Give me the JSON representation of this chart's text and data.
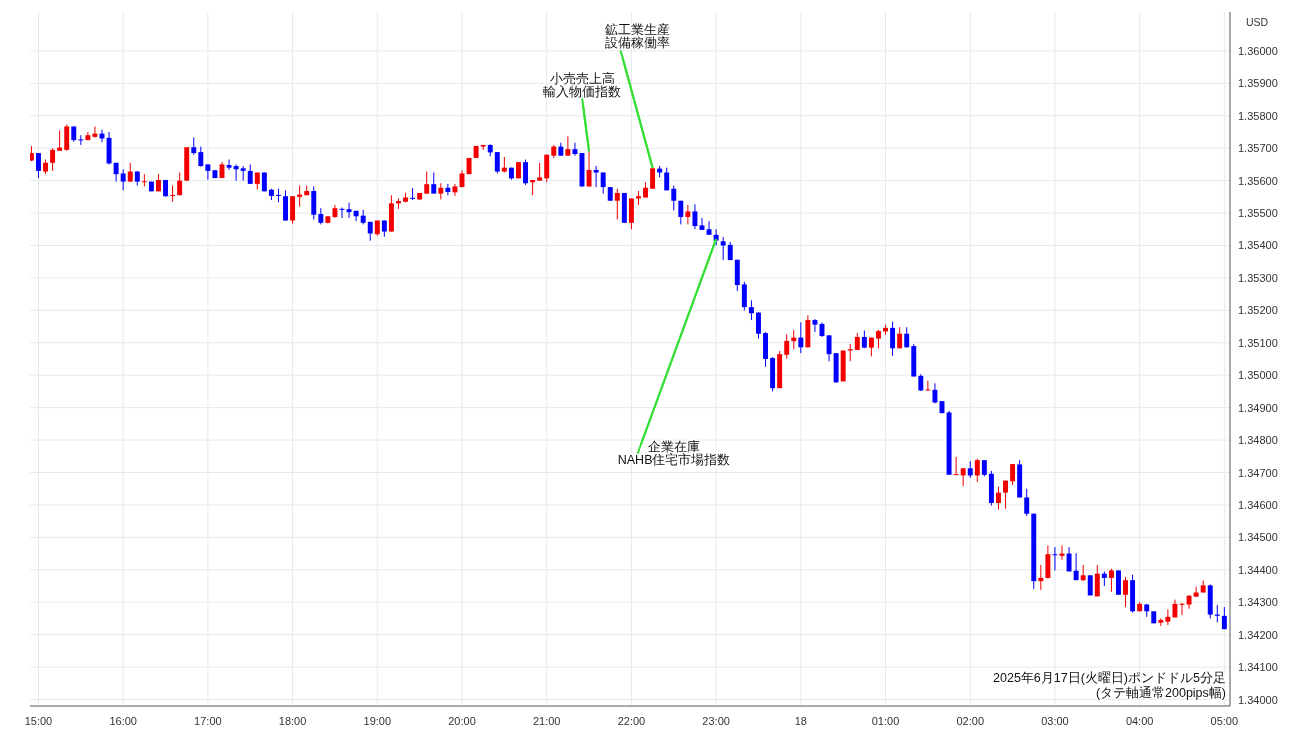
{
  "chart_data": {
    "type": "candlestick",
    "ylabel": "USD",
    "grid": true,
    "xlim": [
      "2025-06-17T14:54",
      "2025-06-18T05:04"
    ],
    "ylim": [
      1.3398,
      1.3612
    ],
    "xticks": [
      {
        "value": "2025-06-17T15:00",
        "label": "15:00"
      },
      {
        "value": "2025-06-17T16:00",
        "label": "16:00"
      },
      {
        "value": "2025-06-17T17:00",
        "label": "17:00"
      },
      {
        "value": "2025-06-17T18:00",
        "label": "18:00"
      },
      {
        "value": "2025-06-17T19:00",
        "label": "19:00"
      },
      {
        "value": "2025-06-17T20:00",
        "label": "20:00"
      },
      {
        "value": "2025-06-17T21:00",
        "label": "21:00"
      },
      {
        "value": "2025-06-17T22:00",
        "label": "22:00"
      },
      {
        "value": "2025-06-17T23:00",
        "label": "23:00"
      },
      {
        "value": "2025-06-18T00:00",
        "label": "18"
      },
      {
        "value": "2025-06-18T01:00",
        "label": "01:00"
      },
      {
        "value": "2025-06-18T02:00",
        "label": "02:00"
      },
      {
        "value": "2025-06-18T03:00",
        "label": "03:00"
      },
      {
        "value": "2025-06-18T04:00",
        "label": "04:00"
      },
      {
        "value": "2025-06-18T05:00",
        "label": "05:00"
      }
    ],
    "yticks": [
      {
        "value": 1.34,
        "label": "1.34000"
      },
      {
        "value": 1.341,
        "label": "1.34100"
      },
      {
        "value": 1.342,
        "label": "1.34200"
      },
      {
        "value": 1.343,
        "label": "1.34300"
      },
      {
        "value": 1.344,
        "label": "1.34400"
      },
      {
        "value": 1.345,
        "label": "1.34500"
      },
      {
        "value": 1.346,
        "label": "1.34600"
      },
      {
        "value": 1.347,
        "label": "1.34700"
      },
      {
        "value": 1.348,
        "label": "1.34800"
      },
      {
        "value": 1.349,
        "label": "1.34900"
      },
      {
        "value": 1.35,
        "label": "1.35000"
      },
      {
        "value": 1.351,
        "label": "1.35100"
      },
      {
        "value": 1.352,
        "label": "1.35200"
      },
      {
        "value": 1.353,
        "label": "1.35300"
      },
      {
        "value": 1.354,
        "label": "1.35400"
      },
      {
        "value": 1.355,
        "label": "1.35500"
      },
      {
        "value": 1.356,
        "label": "1.35600"
      },
      {
        "value": 1.357,
        "label": "1.35700"
      },
      {
        "value": 1.358,
        "label": "1.35800"
      },
      {
        "value": 1.359,
        "label": "1.35900"
      },
      {
        "value": 1.36,
        "label": "1.36000"
      }
    ],
    "annotations": [
      {
        "text": "小売売上高",
        "x": "2025-06-17T21:30",
        "y": 1.3569
      },
      {
        "text": "輸入物価指数",
        "x": "2025-06-17T21:30",
        "y": 1.3569
      },
      {
        "text": "鉱工業生産",
        "x": "2025-06-17T22:15",
        "y": 1.3564
      },
      {
        "text": "設備稼働率",
        "x": "2025-06-17T22:15",
        "y": 1.3564
      },
      {
        "text": "企業在庫",
        "x": "2025-06-17T23:00",
        "y": 1.3542
      },
      {
        "text": "NAHB住宅市場指数",
        "x": "2025-06-17T23:00",
        "y": 1.3542
      },
      "2025年6月17日(火曜日)ポンドドル5分足",
      "(タテ軸通常200pips幅)"
    ],
    "x": [
      "2025-06-17T14:55",
      "2025-06-17T15:00",
      "2025-06-17T15:05",
      "2025-06-17T15:10",
      "2025-06-17T15:15",
      "2025-06-17T15:20",
      "2025-06-17T15:25",
      "2025-06-17T15:30",
      "2025-06-17T15:35",
      "2025-06-17T15:40",
      "2025-06-17T15:45",
      "2025-06-17T15:50",
      "2025-06-17T15:55",
      "2025-06-17T16:00",
      "2025-06-17T16:05",
      "2025-06-17T16:10",
      "2025-06-17T16:15",
      "2025-06-17T16:20",
      "2025-06-17T16:25",
      "2025-06-17T16:30",
      "2025-06-17T16:35",
      "2025-06-17T16:40",
      "2025-06-17T16:45",
      "2025-06-17T16:50",
      "2025-06-17T16:55",
      "2025-06-17T17:00",
      "2025-06-17T17:05",
      "2025-06-17T17:10",
      "2025-06-17T17:15",
      "2025-06-17T17:20",
      "2025-06-17T17:25",
      "2025-06-17T17:30",
      "2025-06-17T17:35",
      "2025-06-17T17:40",
      "2025-06-17T17:45",
      "2025-06-17T17:50",
      "2025-06-17T17:55",
      "2025-06-17T18:00",
      "2025-06-17T18:05",
      "2025-06-17T18:10",
      "2025-06-17T18:15",
      "2025-06-17T18:20",
      "2025-06-17T18:25",
      "2025-06-17T18:30",
      "2025-06-17T18:35",
      "2025-06-17T18:40",
      "2025-06-17T18:45",
      "2025-06-17T18:50",
      "2025-06-17T18:55",
      "2025-06-17T19:00",
      "2025-06-17T19:05",
      "2025-06-17T19:10",
      "2025-06-17T19:15",
      "2025-06-17T19:20",
      "2025-06-17T19:25",
      "2025-06-17T19:30",
      "2025-06-17T19:35",
      "2025-06-17T19:40",
      "2025-06-17T19:45",
      "2025-06-17T19:50",
      "2025-06-17T19:55",
      "2025-06-17T20:00",
      "2025-06-17T20:05",
      "2025-06-17T20:10",
      "2025-06-17T20:15",
      "2025-06-17T20:20",
      "2025-06-17T20:25",
      "2025-06-17T20:30",
      "2025-06-17T20:35",
      "2025-06-17T20:40",
      "2025-06-17T20:45",
      "2025-06-17T20:50",
      "2025-06-17T20:55",
      "2025-06-17T21:00",
      "2025-06-17T21:05",
      "2025-06-17T21:10",
      "2025-06-17T21:15",
      "2025-06-17T21:20",
      "2025-06-17T21:25",
      "2025-06-17T21:30",
      "2025-06-17T21:35",
      "2025-06-17T21:40",
      "2025-06-17T21:45",
      "2025-06-17T21:50",
      "2025-06-17T21:55",
      "2025-06-17T22:00",
      "2025-06-17T22:05",
      "2025-06-17T22:10",
      "2025-06-17T22:15",
      "2025-06-17T22:20",
      "2025-06-17T22:25",
      "2025-06-17T22:30",
      "2025-06-17T22:35",
      "2025-06-17T22:40",
      "2025-06-17T22:45",
      "2025-06-17T22:50",
      "2025-06-17T22:55",
      "2025-06-17T23:00",
      "2025-06-17T23:05",
      "2025-06-17T23:10",
      "2025-06-17T23:15",
      "2025-06-17T23:20",
      "2025-06-17T23:25",
      "2025-06-17T23:30",
      "2025-06-17T23:35",
      "2025-06-17T23:40",
      "2025-06-17T23:45",
      "2025-06-17T23:50",
      "2025-06-17T23:55",
      "2025-06-18T00:00",
      "2025-06-18T00:05",
      "2025-06-18T00:10",
      "2025-06-18T00:15",
      "2025-06-18T00:20",
      "2025-06-18T00:25",
      "2025-06-18T00:30",
      "2025-06-18T00:35",
      "2025-06-18T00:40",
      "2025-06-18T00:45",
      "2025-06-18T00:50",
      "2025-06-18T00:55",
      "2025-06-18T01:00",
      "2025-06-18T01:05",
      "2025-06-18T01:10",
      "2025-06-18T01:15",
      "2025-06-18T01:20",
      "2025-06-18T01:25",
      "2025-06-18T01:30",
      "2025-06-18T01:35",
      "2025-06-18T01:40",
      "2025-06-18T01:45",
      "2025-06-18T01:50",
      "2025-06-18T01:55",
      "2025-06-18T02:00",
      "2025-06-18T02:05",
      "2025-06-18T02:10",
      "2025-06-18T02:15",
      "2025-06-18T02:20",
      "2025-06-18T02:25",
      "2025-06-18T02:30",
      "2025-06-18T02:35",
      "2025-06-18T02:40",
      "2025-06-18T02:45",
      "2025-06-18T02:50",
      "2025-06-18T02:55",
      "2025-06-18T03:00",
      "2025-06-18T03:05",
      "2025-06-18T03:10",
      "2025-06-18T03:15",
      "2025-06-18T03:20",
      "2025-06-18T03:25",
      "2025-06-18T03:30",
      "2025-06-18T03:35",
      "2025-06-18T03:40",
      "2025-06-18T03:45",
      "2025-06-18T03:50",
      "2025-06-18T03:55",
      "2025-06-18T04:00",
      "2025-06-18T04:05",
      "2025-06-18T04:10",
      "2025-06-18T04:15",
      "2025-06-18T04:20",
      "2025-06-18T04:25",
      "2025-06-18T04:30",
      "2025-06-18T04:35",
      "2025-06-18T04:40",
      "2025-06-18T04:45",
      "2025-06-18T04:50",
      "2025-06-18T04:55",
      "2025-06-18T05:00"
    ],
    "ohlc": [
      [
        1.35662,
        1.35707,
        1.3566,
        1.35685
      ],
      [
        1.35685,
        1.35685,
        1.35608,
        1.3563
      ],
      [
        1.35628,
        1.35665,
        1.3562,
        1.35655
      ],
      [
        1.35655,
        1.357,
        1.3563,
        1.35695
      ],
      [
        1.35692,
        1.35755,
        1.35692,
        1.35702
      ],
      [
        1.35695,
        1.35773,
        1.35692,
        1.35767
      ],
      [
        1.35767,
        1.35767,
        1.3572,
        1.35725
      ],
      [
        1.35727,
        1.3574,
        1.3571,
        1.35724
      ],
      [
        1.35725,
        1.3575,
        1.35725,
        1.3574
      ],
      [
        1.35735,
        1.35767,
        1.35733,
        1.35745
      ],
      [
        1.35745,
        1.35757,
        1.35718,
        1.3573
      ],
      [
        1.35732,
        1.3575,
        1.3565,
        1.35653
      ],
      [
        1.35655,
        1.35655,
        1.35597,
        1.3562
      ],
      [
        1.35622,
        1.35635,
        1.3557,
        1.35597
      ],
      [
        1.35597,
        1.35655,
        1.35597,
        1.35628
      ],
      [
        1.35628,
        1.3563,
        1.35585,
        1.35597
      ],
      [
        1.35595,
        1.3562,
        1.35582,
        1.35598
      ],
      [
        1.35597,
        1.35597,
        1.35567,
        1.35567
      ],
      [
        1.35567,
        1.3562,
        1.35567,
        1.35602
      ],
      [
        1.35602,
        1.35602,
        1.3555,
        1.35552
      ],
      [
        1.35553,
        1.35585,
        1.35535,
        1.35556
      ],
      [
        1.35555,
        1.35625,
        1.35555,
        1.356
      ],
      [
        1.356,
        1.35703,
        1.356,
        1.35703
      ],
      [
        1.35703,
        1.35733,
        1.3568,
        1.35685
      ],
      [
        1.35688,
        1.35705,
        1.35643,
        1.35645
      ],
      [
        1.3565,
        1.3565,
        1.35603,
        1.3563
      ],
      [
        1.35632,
        1.35632,
        1.35608,
        1.35608
      ],
      [
        1.35608,
        1.35657,
        1.35608,
        1.3565
      ],
      [
        1.35648,
        1.35665,
        1.35633,
        1.3564
      ],
      [
        1.35645,
        1.3565,
        1.356,
        1.35635
      ],
      [
        1.35638,
        1.35645,
        1.356,
        1.3563
      ],
      [
        1.3563,
        1.3565,
        1.3559,
        1.3559
      ],
      [
        1.3559,
        1.35625,
        1.35573,
        1.35625
      ],
      [
        1.35625,
        1.35625,
        1.35567,
        1.35567
      ],
      [
        1.35572,
        1.35575,
        1.3554,
        1.35553
      ],
      [
        1.35556,
        1.35575,
        1.35533,
        1.35554
      ],
      [
        1.35552,
        1.3557,
        1.35477,
        1.35477
      ],
      [
        1.35477,
        1.35552,
        1.35467,
        1.35552
      ],
      [
        1.3555,
        1.35585,
        1.3552,
        1.35557
      ],
      [
        1.35555,
        1.35585,
        1.35555,
        1.35568
      ],
      [
        1.35568,
        1.35582,
        1.3548,
        1.35495
      ],
      [
        1.35497,
        1.35515,
        1.35465,
        1.3547
      ],
      [
        1.3547,
        1.3549,
        1.35468,
        1.3549
      ],
      [
        1.35488,
        1.35525,
        1.35485,
        1.35515
      ],
      [
        1.35513,
        1.35517,
        1.35485,
        1.3551
      ],
      [
        1.35512,
        1.35532,
        1.35485,
        1.35503
      ],
      [
        1.35507,
        1.35507,
        1.35475,
        1.3549
      ],
      [
        1.35492,
        1.3551,
        1.35465,
        1.3547
      ],
      [
        1.35473,
        1.35473,
        1.35415,
        1.35437
      ],
      [
        1.35435,
        1.35477,
        1.3543,
        1.35477
      ],
      [
        1.35477,
        1.35477,
        1.35427,
        1.35443
      ],
      [
        1.35443,
        1.35555,
        1.35443,
        1.3553
      ],
      [
        1.3553,
        1.35545,
        1.35513,
        1.35537
      ],
      [
        1.35535,
        1.35563,
        1.35533,
        1.35548
      ],
      [
        1.35547,
        1.35577,
        1.3554,
        1.35545
      ],
      [
        1.35542,
        1.35562,
        1.3554,
        1.35562
      ],
      [
        1.3556,
        1.35628,
        1.3556,
        1.35589
      ],
      [
        1.35589,
        1.35625,
        1.3556,
        1.3556
      ],
      [
        1.3556,
        1.35592,
        1.35542,
        1.35578
      ],
      [
        1.35578,
        1.3559,
        1.35555,
        1.35565
      ],
      [
        1.35564,
        1.3559,
        1.35553,
        1.35582
      ],
      [
        1.3558,
        1.35632,
        1.3558,
        1.35622
      ],
      [
        1.3562,
        1.3567,
        1.3562,
        1.3567
      ],
      [
        1.3567,
        1.35707,
        1.3567,
        1.35707
      ],
      [
        1.35705,
        1.3571,
        1.35695,
        1.3571
      ],
      [
        1.3571,
        1.35712,
        1.35675,
        1.35687
      ],
      [
        1.35688,
        1.35688,
        1.35622,
        1.35628
      ],
      [
        1.35628,
        1.35673,
        1.35625,
        1.3564
      ],
      [
        1.3564,
        1.3564,
        1.35603,
        1.35607
      ],
      [
        1.35607,
        1.35657,
        1.35607,
        1.35657
      ],
      [
        1.35657,
        1.35665,
        1.35587,
        1.35592
      ],
      [
        1.35595,
        1.35602,
        1.35555,
        1.35602
      ],
      [
        1.356,
        1.35655,
        1.356,
        1.3561
      ],
      [
        1.35607,
        1.3568,
        1.35595,
        1.3568
      ],
      [
        1.35677,
        1.3571,
        1.3567,
        1.35705
      ],
      [
        1.35705,
        1.35717,
        1.35677,
        1.35677
      ],
      [
        1.35677,
        1.35737,
        1.35677,
        1.35697
      ],
      [
        1.35697,
        1.35717,
        1.35677,
        1.35682
      ],
      [
        1.35685,
        1.35685,
        1.35582,
        1.35582
      ],
      [
        1.35582,
        1.3569,
        1.35582,
        1.35633
      ],
      [
        1.35633,
        1.35645,
        1.3558,
        1.35625
      ],
      [
        1.35625,
        1.35625,
        1.3556,
        1.3558
      ],
      [
        1.3558,
        1.3558,
        1.35538,
        1.35538
      ],
      [
        1.35538,
        1.35575,
        1.3548,
        1.35562
      ],
      [
        1.35562,
        1.35562,
        1.3547,
        1.3547
      ],
      [
        1.3547,
        1.35545,
        1.3545,
        1.35545
      ],
      [
        1.35545,
        1.35568,
        1.35525,
        1.35552
      ],
      [
        1.35548,
        1.35595,
        1.35548,
        1.35578
      ],
      [
        1.35575,
        1.35638,
        1.35575,
        1.35638
      ],
      [
        1.35637,
        1.35645,
        1.3561,
        1.35625
      ],
      [
        1.35625,
        1.3564,
        1.3557,
        1.3557
      ],
      [
        1.35575,
        1.35585,
        1.35508,
        1.35538
      ],
      [
        1.35538,
        1.35538,
        1.35465,
        1.35488
      ],
      [
        1.35488,
        1.35525,
        1.35465,
        1.35505
      ],
      [
        1.35505,
        1.35527,
        1.3545,
        1.3546
      ],
      [
        1.35462,
        1.35485,
        1.35448,
        1.35448
      ],
      [
        1.3545,
        1.35475,
        1.35433,
        1.35433
      ],
      [
        1.35433,
        1.3545,
        1.354,
        1.35415
      ],
      [
        1.35413,
        1.35426,
        1.35355,
        1.354
      ],
      [
        1.35402,
        1.35411,
        1.35355,
        1.35355
      ],
      [
        1.35356,
        1.35356,
        1.3526,
        1.35278
      ],
      [
        1.3528,
        1.35288,
        1.352,
        1.3521
      ],
      [
        1.3521,
        1.35231,
        1.3517,
        1.35191
      ],
      [
        1.35193,
        1.35195,
        1.35113,
        1.35128
      ],
      [
        1.3513,
        1.35133,
        1.35026,
        1.3505
      ],
      [
        1.35053,
        1.35056,
        1.3495,
        1.3496
      ],
      [
        1.3496,
        1.35075,
        1.3496,
        1.35065
      ],
      [
        1.35063,
        1.35126,
        1.35051,
        1.35106
      ],
      [
        1.35105,
        1.3514,
        1.3508,
        1.35116
      ],
      [
        1.35116,
        1.35163,
        1.35068,
        1.35086
      ],
      [
        1.35086,
        1.35185,
        1.35086,
        1.3517
      ],
      [
        1.3517,
        1.35173,
        1.35133,
        1.35156
      ],
      [
        1.35158,
        1.35163,
        1.35118,
        1.35121
      ],
      [
        1.35123,
        1.35123,
        1.35043,
        1.35065
      ],
      [
        1.35068,
        1.35068,
        1.34976,
        1.34978
      ],
      [
        1.34981,
        1.35076,
        1.34981,
        1.35076
      ],
      [
        1.35076,
        1.35096,
        1.35043,
        1.3508
      ],
      [
        1.35078,
        1.3513,
        1.35078,
        1.35118
      ],
      [
        1.35118,
        1.35138,
        1.35083,
        1.35085
      ],
      [
        1.35085,
        1.35116,
        1.35058,
        1.35116
      ],
      [
        1.35113,
        1.3514,
        1.35083,
        1.35136
      ],
      [
        1.35135,
        1.35156,
        1.35125,
        1.35146
      ],
      [
        1.35146,
        1.35165,
        1.3506,
        1.35083
      ],
      [
        1.35083,
        1.35148,
        1.35083,
        1.35128
      ],
      [
        1.35128,
        1.35148,
        1.35086,
        1.35086
      ],
      [
        1.3509,
        1.35096,
        1.34996,
        1.34996
      ],
      [
        1.34998,
        1.35003,
        1.34951,
        1.34953
      ],
      [
        1.34953,
        1.34983,
        1.34953,
        1.34956
      ],
      [
        1.34955,
        1.34975,
        1.34913,
        1.34916
      ],
      [
        1.3492,
        1.3492,
        1.34883,
        1.34883
      ],
      [
        1.34885,
        1.3489,
        1.34693,
        1.34693
      ],
      [
        1.34693,
        1.34748,
        1.34693,
        1.34695
      ],
      [
        1.34691,
        1.34713,
        1.34658,
        1.34713
      ],
      [
        1.34713,
        1.34735,
        1.34683,
        1.34691
      ],
      [
        1.34691,
        1.34743,
        1.34671,
        1.34738
      ],
      [
        1.34738,
        1.34738,
        1.34688,
        1.34693
      ],
      [
        1.34696,
        1.34705,
        1.34598,
        1.34606
      ],
      [
        1.34606,
        1.34656,
        1.34586,
        1.34638
      ],
      [
        1.34638,
        1.34675,
        1.34588,
        1.34675
      ],
      [
        1.34673,
        1.34726,
        1.34661,
        1.34726
      ],
      [
        1.34725,
        1.34738,
        1.34623,
        1.34623
      ],
      [
        1.34623,
        1.3465,
        1.34566,
        1.34573
      ],
      [
        1.34573,
        1.34573,
        1.34341,
        1.34365
      ],
      [
        1.34365,
        1.34415,
        1.34338,
        1.34375
      ],
      [
        1.34375,
        1.34475,
        1.34373,
        1.34448
      ],
      [
        1.34448,
        1.3447,
        1.34398,
        1.34445
      ],
      [
        1.34443,
        1.34475,
        1.34431,
        1.3445
      ],
      [
        1.3445,
        1.3447,
        1.34395,
        1.34395
      ],
      [
        1.34397,
        1.34451,
        1.34368,
        1.34368
      ],
      [
        1.34368,
        1.34415,
        1.34365,
        1.34383
      ],
      [
        1.34383,
        1.34383,
        1.34321,
        1.34321
      ],
      [
        1.34318,
        1.34415,
        1.34318,
        1.34388
      ],
      [
        1.34388,
        1.34395,
        1.3435,
        1.34375
      ],
      [
        1.34375,
        1.34403,
        1.34332,
        1.34398
      ],
      [
        1.34398,
        1.34398,
        1.34323,
        1.34323
      ],
      [
        1.34323,
        1.34378,
        1.34285,
        1.34368
      ],
      [
        1.34368,
        1.34385,
        1.34268,
        1.34272
      ],
      [
        1.34272,
        1.343,
        1.34272,
        1.34295
      ],
      [
        1.34293,
        1.34295,
        1.34255,
        1.34272
      ],
      [
        1.34272,
        1.34272,
        1.34235,
        1.34235
      ],
      [
        1.34237,
        1.3425,
        1.34227,
        1.34245
      ],
      [
        1.3424,
        1.34278,
        1.3423,
        1.34255
      ],
      [
        1.34253,
        1.34308,
        1.34253,
        1.34295
      ],
      [
        1.34293,
        1.34298,
        1.3426,
        1.34295
      ],
      [
        1.34293,
        1.34322,
        1.3428,
        1.3432
      ],
      [
        1.34317,
        1.34348,
        1.34317,
        1.3433
      ],
      [
        1.3433,
        1.34367,
        1.3433,
        1.34352
      ],
      [
        1.34352,
        1.34355,
        1.3425,
        1.34262
      ],
      [
        1.34262,
        1.34292,
        1.34238,
        1.34258
      ],
      [
        1.34258,
        1.34285,
        1.34217,
        1.34217
      ]
    ],
    "colors": [
      "#f20000",
      "#0000ff",
      "#f20000",
      "#f20000",
      "#f20000",
      "#f20000",
      "#0000ff",
      "#0000ff",
      "#f20000",
      "#f20000",
      "#0000ff",
      "#0000ff",
      "#0000ff",
      "#0000ff",
      "#f20000",
      "#0000ff",
      "#f20000",
      "#0000ff",
      "#f20000",
      "#0000ff",
      "#f20000",
      "#f20000",
      "#f20000",
      "#0000ff",
      "#0000ff",
      "#0000ff",
      "#0000ff",
      "#f20000",
      "#0000ff",
      "#0000ff",
      "#0000ff",
      "#0000ff",
      "#f20000",
      "#0000ff",
      "#0000ff",
      "#0000ff",
      "#0000ff",
      "#f20000",
      "#f20000",
      "#f20000",
      "#0000ff",
      "#0000ff",
      "#f20000",
      "#f20000",
      "#0000ff",
      "#0000ff",
      "#0000ff",
      "#0000ff",
      "#0000ff",
      "#f20000",
      "#0000ff",
      "#f20000",
      "#f20000",
      "#f20000",
      "#0000ff",
      "#f20000",
      "#f20000",
      "#0000ff",
      "#f20000",
      "#0000ff",
      "#f20000",
      "#f20000",
      "#f20000",
      "#f20000",
      "#f20000",
      "#0000ff",
      "#0000ff",
      "#f20000",
      "#0000ff",
      "#f20000",
      "#0000ff",
      "#f20000",
      "#f20000",
      "#f20000",
      "#f20000",
      "#0000ff",
      "#f20000",
      "#0000ff",
      "#0000ff",
      "#f20000",
      "#0000ff",
      "#0000ff",
      "#0000ff",
      "#f20000",
      "#0000ff",
      "#f20000",
      "#f20000",
      "#f20000",
      "#f20000",
      "#0000ff",
      "#0000ff",
      "#0000ff",
      "#0000ff",
      "#f20000",
      "#0000ff",
      "#0000ff",
      "#0000ff",
      "#0000ff",
      "#0000ff",
      "#0000ff",
      "#0000ff",
      "#0000ff",
      "#0000ff",
      "#0000ff",
      "#0000ff",
      "#0000ff",
      "#f20000",
      "#f20000",
      "#f20000",
      "#0000ff",
      "#f20000",
      "#0000ff",
      "#0000ff",
      "#0000ff",
      "#0000ff",
      "#f20000",
      "#f20000",
      "#f20000",
      "#0000ff",
      "#f20000",
      "#f20000",
      "#f20000",
      "#0000ff",
      "#f20000",
      "#0000ff",
      "#0000ff",
      "#0000ff",
      "#f20000",
      "#0000ff",
      "#0000ff",
      "#0000ff",
      "#f20000",
      "#f20000",
      "#0000ff",
      "#f20000",
      "#0000ff",
      "#0000ff",
      "#f20000",
      "#f20000",
      "#f20000",
      "#0000ff",
      "#0000ff",
      "#0000ff",
      "#f20000",
      "#f20000",
      "#0000ff",
      "#f20000",
      "#0000ff",
      "#0000ff",
      "#f20000",
      "#0000ff",
      "#f20000",
      "#0000ff",
      "#f20000",
      "#0000ff",
      "#f20000",
      "#0000ff",
      "#f20000",
      "#0000ff",
      "#0000ff",
      "#f20000",
      "#f20000",
      "#f20000",
      "#f20000",
      "#f20000",
      "#f20000",
      "#f20000",
      "#0000ff",
      "#0000ff",
      "#0000ff"
    ]
  }
}
